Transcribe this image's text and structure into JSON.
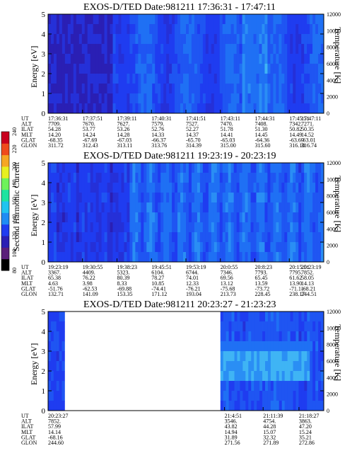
{
  "colors": {
    "background": "#ffffff",
    "spectrum_low": "#2a1fb4",
    "spectrum_mid": "#1f3cf0",
    "spectrum_high": "#3fb4f4",
    "axis": "#000000"
  },
  "colorbar": {
    "label": "Second Harmonic Current",
    "ticks": [
      "80",
      "100",
      "120",
      "140",
      "160",
      "180",
      "200",
      "220",
      "240"
    ],
    "colors": [
      "#000000",
      "#5a1f7a",
      "#2a1fb4",
      "#1f3cf0",
      "#1f8cf4",
      "#21c4f0",
      "#1fe3a0",
      "#6ef35a",
      "#e8f01f",
      "#f6a623",
      "#ef4a1c",
      "#c9001e"
    ]
  },
  "chart_data": [
    {
      "type": "heatmap",
      "title": "EXOS-D/TED   Date:981211   17:36:31 - 17:47:11",
      "ylabel": "Energy [eV]",
      "y2label": "Temperature [K]",
      "ylim": [
        0,
        5
      ],
      "y2lim": [
        0,
        12000
      ],
      "yticks": [
        "0",
        "1",
        "2",
        "3",
        "4",
        "5"
      ],
      "y2ticks": [
        "0",
        "2000",
        "4000",
        "6000",
        "8000",
        "10000",
        "12000"
      ],
      "data_extent": [
        0.0,
        1.0
      ],
      "orbit_labels": [
        "UT",
        "ALT",
        "ILAT",
        "MLT",
        "GLAT",
        "GLON"
      ],
      "orbit": [
        [
          "17:36:31",
          "7709.",
          "54.28",
          "14.20",
          "-68.35",
          "311.72"
        ],
        [
          "17:37:51",
          "7670.",
          "53.77",
          "14.24",
          "-67.69",
          "312.43"
        ],
        [
          "17:39:11",
          "7627.",
          "53.26",
          "14.28",
          "-67.03",
          "313.11"
        ],
        [
          "17:40:31",
          "7579.",
          "52.76",
          "14.33",
          "-66.37",
          "313.76"
        ],
        [
          "17:41:51",
          "7527.",
          "52.27",
          "14.37",
          "-65.70",
          "314.39"
        ],
        [
          "17:43:11",
          "7470.",
          "51.78",
          "14.41",
          "-65.03",
          "315.00"
        ],
        [
          "17:44:31",
          "7408.",
          "51.30",
          "14.45",
          "-64.36",
          "315.60"
        ],
        [
          "17:45:51",
          "7342.",
          "50.82",
          "14.49",
          "-63.69",
          "316.18"
        ],
        [
          "17:47:11",
          "7271.",
          "50.35",
          "14.52",
          "-63.01",
          "316.74"
        ]
      ]
    },
    {
      "type": "heatmap",
      "title": "EXOS-D/TED   Date:981211   19:23:19 - 20:23:19",
      "ylabel": "Energy [eV]",
      "y2label": "Temperature [K]",
      "ylim": [
        0,
        5
      ],
      "y2lim": [
        0,
        12000
      ],
      "yticks": [
        "0",
        "1",
        "2",
        "3",
        "4",
        "5"
      ],
      "y2ticks": [
        "0",
        "2000",
        "4000",
        "6000",
        "8000",
        "10000",
        "12000"
      ],
      "data_extent": [
        0.0,
        1.0
      ],
      "orbit_labels": [
        "UT",
        "ALT",
        "ILAT",
        "MLT",
        "GLAT",
        "GLON"
      ],
      "orbit": [
        [
          "19:23:19",
          "3367.",
          "65.38",
          "4.63",
          "-51.76",
          "132.71"
        ],
        [
          "19:30:55",
          "4409.",
          "76.22",
          "3.98",
          "-62.53",
          "141.09"
        ],
        [
          "19:38:23",
          "5323.",
          "80.39",
          "8.33",
          "-69.88",
          "153.35"
        ],
        [
          "19:45:51",
          "6104.",
          "78.27",
          "10.85",
          "-74.41",
          "171.12"
        ],
        [
          "19:53:19",
          "6744.",
          "74.01",
          "12.33",
          "-76.21",
          "193.04"
        ],
        [
          "20:0:55",
          "7346.",
          "69.56",
          "13.12",
          "-75.68",
          "213.73"
        ],
        [
          "20:8:23",
          "7793.",
          "65.45",
          "13.59",
          "-73.72",
          "228.45"
        ],
        [
          "20:15:51",
          "7795.",
          "61.62",
          "13.90",
          "-71.11",
          "238.17"
        ],
        [
          "20:23:19",
          "7852.",
          "58.05",
          "14.13",
          "-68.21",
          "244.51"
        ]
      ]
    },
    {
      "type": "heatmap",
      "title": "EXOS-D/TED   Date:981211   20:23:27 - 21:23:23",
      "ylabel": "Energy [eV]",
      "y2label": "Temperature [K]",
      "ylim": [
        0,
        5
      ],
      "y2lim": [
        0,
        12000
      ],
      "yticks": [
        "0",
        "1",
        "2",
        "3",
        "4",
        "5"
      ],
      "y2ticks": [
        "0",
        "2000",
        "4000",
        "6000",
        "8000",
        "10000",
        "12000"
      ],
      "data_extent": [
        0.0,
        0.06,
        0.625,
        1.0
      ],
      "orbit_labels": [
        "UT",
        "ALT",
        "ILAT",
        "MLT",
        "GLAT",
        "GLON"
      ],
      "orbit": [
        [
          "20:23:27",
          "7852.",
          "57.99",
          "14.14",
          "-68.16",
          "244.60"
        ],
        [
          "21:4:51",
          "3546.",
          "43.82",
          "14.94",
          "31.89",
          "271.56"
        ],
        [
          "21:11:39",
          "4754.",
          "44.28",
          "15.07",
          "32.32",
          "271.89"
        ],
        [
          "21:18:27",
          "3863.",
          "47.20",
          "15.24",
          "35.21",
          "272.86"
        ]
      ]
    }
  ]
}
